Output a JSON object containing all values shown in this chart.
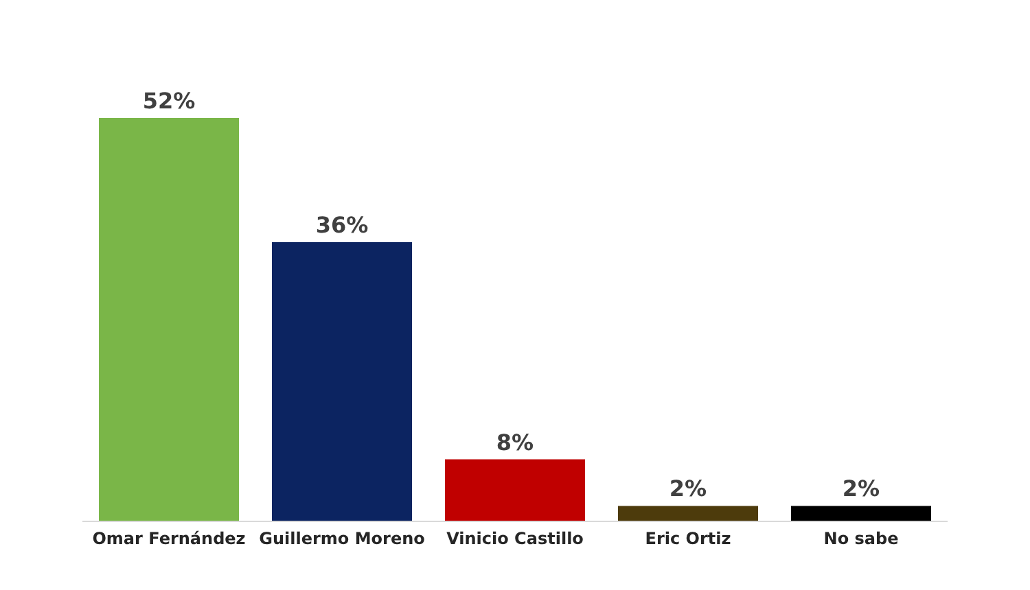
{
  "chart_data": {
    "type": "bar",
    "categories": [
      "Omar Fernández",
      "Guillermo Moreno",
      "Vinicio Castillo",
      "Eric Ortiz",
      "No sabe"
    ],
    "values": [
      52,
      36,
      8,
      2,
      2
    ],
    "colors": [
      "#7ab648",
      "#0c2461",
      "#c00000",
      "#4d3b0c",
      "#000000"
    ],
    "value_labels": [
      "52%",
      "36%",
      "8%",
      "2%",
      "2%"
    ],
    "grid": false
  }
}
